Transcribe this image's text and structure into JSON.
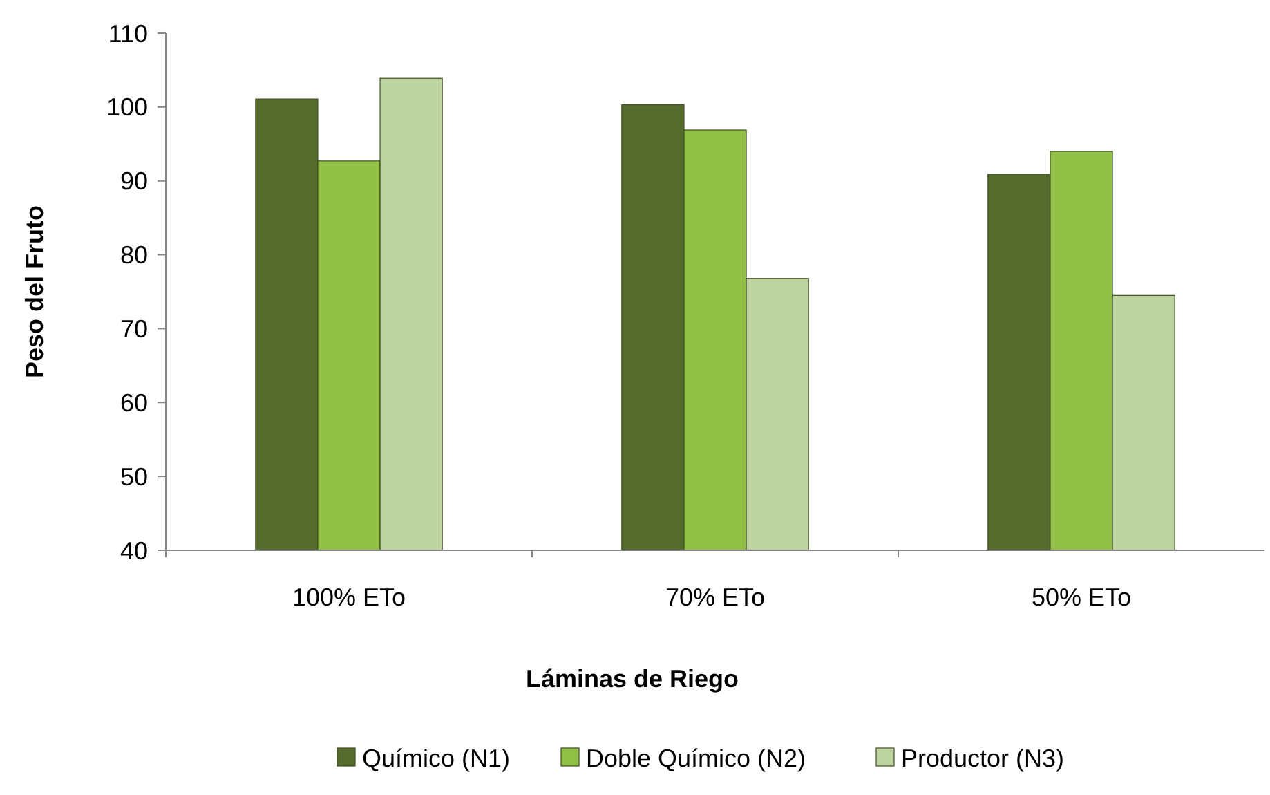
{
  "chart_data": {
    "type": "bar",
    "xlabel": "Láminas de Riego",
    "ylabel": "Peso del Fruto",
    "categories": [
      "100% ETo",
      "70% ETo",
      "50% ETo"
    ],
    "series": [
      {
        "name": "Químico (N1)",
        "color": "#566b2e",
        "values": [
          101.1,
          100.3,
          90.9
        ]
      },
      {
        "name": "Doble Químico (N2)",
        "color": "#92c047",
        "values": [
          92.7,
          96.9,
          94
        ]
      },
      {
        "name": "Productor (N3)",
        "color": "#bdd4a0",
        "values": [
          103.9,
          76.8,
          74.5
        ]
      }
    ],
    "ylim": [
      40,
      110
    ],
    "yticks": [
      40,
      50,
      60,
      70,
      80,
      90,
      100,
      110
    ],
    "grid": false,
    "legend": "bottom"
  }
}
